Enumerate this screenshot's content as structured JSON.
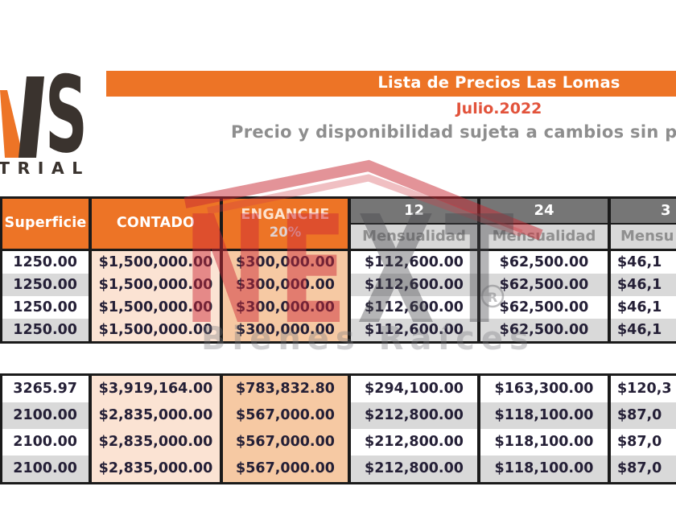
{
  "header": {
    "title": "Lista de Precios Las Lomas",
    "date": "Julio.2022",
    "notice": "Precio y disponibilidad sujeta a cambios sin pr"
  },
  "logo": {
    "letter": "S",
    "subtext": "TRIAL"
  },
  "watermark": {
    "brand_left": "NE",
    "brand_right": "XT",
    "tagline": "Bienes Raíces",
    "registered": "R"
  },
  "colors": {
    "orange": "#ed7426",
    "accent_red": "#e2533b",
    "peach_light": "#fbe3d3",
    "peach_dark": "#f6c9a3",
    "gray_dark": "#767676",
    "gray_light": "#d8d8d8",
    "row_alt_gray": "#d9d9d9",
    "logo_dark": "#3a332e"
  },
  "table": {
    "headers": {
      "superficie": "Superficie",
      "contado": "CONTADO",
      "enganche_line1": "ENGANCHE",
      "enganche_line2": "20%",
      "col12": "12",
      "col24": "24",
      "col36": "3",
      "mensualidad": "Mensualidad",
      "mensualidad36": "Mensu"
    },
    "groups": [
      {
        "rows": [
          [
            "1250.00",
            "$1,500,000.00",
            "$300,000.00",
            "$112,600.00",
            "$62,500.00",
            "$46,1"
          ],
          [
            "1250.00",
            "$1,500,000.00",
            "$300,000.00",
            "$112,600.00",
            "$62,500.00",
            "$46,1"
          ],
          [
            "1250.00",
            "$1,500,000.00",
            "$300,000.00",
            "$112,600.00",
            "$62,500.00",
            "$46,1"
          ],
          [
            "1250.00",
            "$1,500,000.00",
            "$300,000.00",
            "$112,600.00",
            "$62,500.00",
            "$46,1"
          ]
        ]
      },
      {
        "rows": [
          [
            "3265.97",
            "$3,919,164.00",
            "$783,832.80",
            "$294,100.00",
            "$163,300.00",
            "$120,3"
          ],
          [
            "2100.00",
            "$2,835,000.00",
            "$567,000.00",
            "$212,800.00",
            "$118,100.00",
            "$87,0"
          ],
          [
            "2100.00",
            "$2,835,000.00",
            "$567,000.00",
            "$212,800.00",
            "$118,100.00",
            "$87,0"
          ],
          [
            "2100.00",
            "$2,835,000.00",
            "$567,000.00",
            "$212,800.00",
            "$118,100.00",
            "$87,0"
          ]
        ]
      }
    ]
  }
}
